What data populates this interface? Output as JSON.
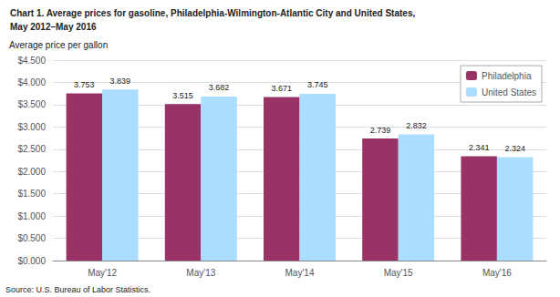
{
  "chart_data": {
    "type": "bar",
    "title": "Chart 1. Average prices for gasoline, Philadelphia-Wilmington-Atlantic City and United States,",
    "subtitle": "May 2012–May 2016",
    "y_label": "Average price per gallon",
    "annotations": [
      "Source: U.S. Bureau of Labor Statistics."
    ],
    "categories": [
      "May'12",
      "May'13",
      "May'14",
      "May'15",
      "May'16"
    ],
    "series": [
      {
        "name": "Philadelphia",
        "color": "#993366",
        "values": [
          3.753,
          3.515,
          3.671,
          2.739,
          2.341
        ]
      },
      {
        "name": "United States",
        "color": "#AADDFF",
        "values": [
          3.839,
          3.682,
          3.745,
          2.832,
          2.324
        ]
      }
    ],
    "ylim": [
      0.0,
      4.5
    ],
    "yticks": [
      {
        "value": 0.0,
        "label": "$0.000"
      },
      {
        "value": 0.5,
        "label": "$0.500"
      },
      {
        "value": 1.0,
        "label": "$1.000"
      },
      {
        "value": 1.5,
        "label": "$1.500"
      },
      {
        "value": 2.0,
        "label": "$2.000"
      },
      {
        "value": 2.5,
        "label": "$2.500"
      },
      {
        "value": 3.0,
        "label": "$3.000"
      },
      {
        "value": 3.5,
        "label": "$3.500"
      },
      {
        "value": 4.0,
        "label": "$4.000"
      },
      {
        "value": 4.5,
        "label": "$4.500"
      }
    ],
    "grid": true,
    "legend": "upper right",
    "data_labels": true
  }
}
